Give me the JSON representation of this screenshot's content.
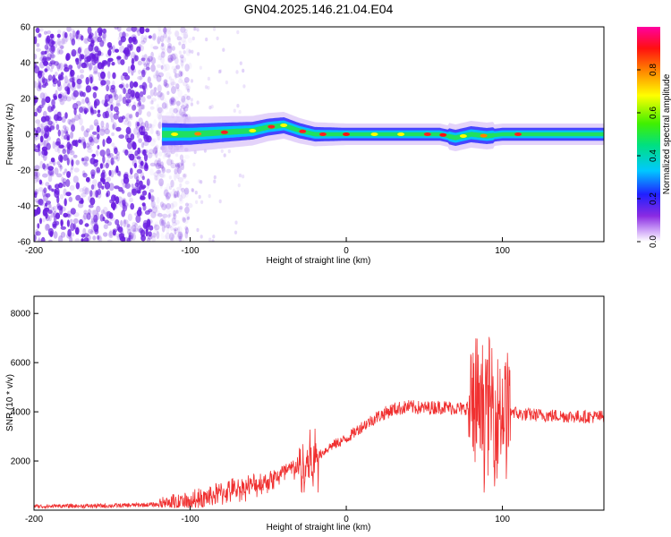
{
  "title": "GN04.2025.146.21.04.E04",
  "colors": {
    "accent": "#f03030",
    "background": "#ffffff",
    "noise": "#6a1ee0"
  },
  "chart_data": [
    {
      "type": "heatmap",
      "title": "GN04.2025.146.21.04.E04",
      "xlabel": "Height of straight line (km)",
      "ylabel": "Frequency (Hz)",
      "xlim": [
        -200,
        165
      ],
      "ylim": [
        -60,
        60
      ],
      "x_ticks": [
        "-200",
        "-100",
        "0",
        "100"
      ],
      "y_ticks": [
        "60",
        "40",
        "20",
        "0",
        "-20",
        "-40",
        "-60"
      ],
      "grid": false,
      "colorbar": {
        "label": "Normalized spectral amplitude",
        "range": [
          0,
          1
        ],
        "ticks": [
          "0.0",
          "0.2",
          "0.4",
          "0.6",
          "0.8"
        ],
        "colormap": "rainbow (white/purple-blue-cyan-green-yellow-red-magenta)"
      },
      "features": {
        "noise_region_x": [
          -200,
          -110
        ],
        "signal_band_x": [
          -118,
          165
        ],
        "signal_center_hz": [
          [
            -118,
            0
          ],
          [
            -100,
            0
          ],
          [
            -80,
            1
          ],
          [
            -60,
            2
          ],
          [
            -50,
            4
          ],
          [
            -40,
            5
          ],
          [
            -30,
            2
          ],
          [
            -20,
            0
          ],
          [
            0,
            0
          ],
          [
            20,
            0
          ],
          [
            40,
            0
          ],
          [
            60,
            0
          ],
          [
            70,
            -2
          ],
          [
            80,
            0
          ],
          [
            90,
            -1
          ],
          [
            100,
            0
          ],
          [
            120,
            0
          ],
          [
            165,
            0
          ]
        ]
      }
    },
    {
      "type": "line",
      "xlabel": "Height of straight line (km)",
      "ylabel": "SNR (10 * v/v)",
      "xlim": [
        -200,
        165
      ],
      "ylim": [
        0,
        8700
      ],
      "x_ticks": [
        "-200",
        "-100",
        "0",
        "100"
      ],
      "y_ticks": [
        "2000",
        "4000",
        "6000",
        "8000"
      ],
      "grid": false,
      "series": [
        {
          "color": "#f03030",
          "x": [
            -200,
            -150,
            -110,
            -100,
            -90,
            -80,
            -70,
            -60,
            -50,
            -40,
            -30,
            -20,
            -10,
            0,
            10,
            20,
            30,
            40,
            50,
            60,
            70,
            75,
            80,
            85,
            90,
            95,
            100,
            105,
            110,
            130,
            150,
            165
          ],
          "y": [
            150,
            180,
            250,
            350,
            500,
            700,
            850,
            1000,
            1200,
            1500,
            1800,
            2100,
            2600,
            2900,
            3400,
            3800,
            4100,
            4200,
            4150,
            4200,
            4150,
            4100,
            4300,
            4000,
            4300,
            4100,
            4200,
            4100,
            3900,
            3850,
            3800,
            3800
          ]
        }
      ],
      "noise_spans": [
        {
          "x": [
            -120,
            -20
          ],
          "amplitude": 600
        },
        {
          "x": [
            -30,
            -18
          ],
          "amplitude": 1600
        },
        {
          "x": [
            78,
            105
          ],
          "amplitude": 3500
        }
      ]
    }
  ]
}
